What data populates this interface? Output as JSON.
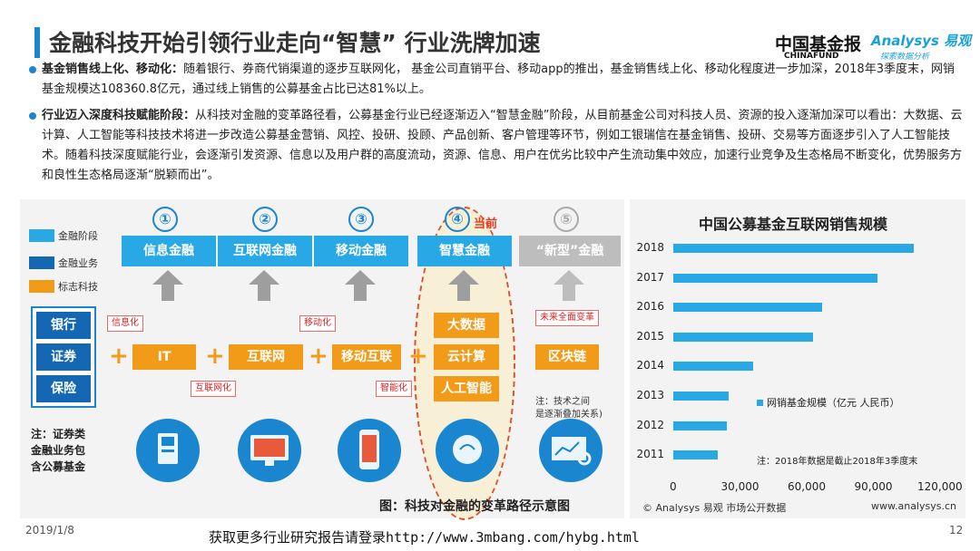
{
  "header": {
    "title": "金融科技开始引领行业走向“智慧” 行业洗牌加速",
    "logo_cn": "中国基金报",
    "logo_en": "CHINAFUND",
    "logo_analysys": "Analysys 易观",
    "logo_analysys_sub": "探索数据分析"
  },
  "bullets": [
    {
      "heading": "基金销售线上化、移动化：",
      "text": "随着银行、券商代销渠道的逐步互联网化， 基金公司直销平台、移动app的推出，基金销售线上化、移动化程度进一步加深，2018年3季度末，网销基金规模达108360.8亿元，通过线上销售的公募基金占比已达81%以上。"
    },
    {
      "heading": "行业迈入深度科技赋能阶段：",
      "text": "从科技对金融的变革路径看，公募基金行业已经逐渐迈入“智慧金融”阶段，从目前基金公司对科技人员、资源的投入逐渐加深可以看出：大数据、云计算、人工智能等科技技术将进一步改造公募基金营销、风控、投研、投顾、产品创新、客户管理等环节，例如工银瑞信在基金销售、投研、交易等方面逐步引入了人工智能技术。随着科技深度赋能行业，会逐渐引发资源、信息以及用户群的高度流动，资源、信息、用户在优劣比较中产生流动集中效应，加速行业竞争及生态格局不断变化，优势服务方和良性生态格局逐渐“脱颖而出”。"
    }
  ],
  "diagram": {
    "legend": [
      {
        "label": "金融阶段",
        "color": "#29a8e6"
      },
      {
        "label": "金融业务",
        "color": "#1467b3"
      },
      {
        "label": "标志科技",
        "color": "#f29b18"
      }
    ],
    "stages": [
      {
        "num": "①",
        "label": "信息金融"
      },
      {
        "num": "②",
        "label": "互联网金融"
      },
      {
        "num": "③",
        "label": "移动金融"
      },
      {
        "num": "④",
        "label": "智慧金融"
      },
      {
        "num": "⑤",
        "label": "“新型”金融"
      }
    ],
    "current_label": "当前",
    "businesses": [
      "银行",
      "证券",
      "保险"
    ],
    "techs": [
      "IT",
      "互联网",
      "移动互联",
      "区块链"
    ],
    "smart_techs": [
      "大数据",
      "云计算",
      "人工智能"
    ],
    "tags": [
      "信息化",
      "互联网化",
      "移动化",
      "智能化",
      "未来全面变革"
    ],
    "tech_note_line1": "注：技术之间",
    "tech_note_line2": "是逐渐叠加关系)",
    "left_note": "注：证券类金融业务包含公募基金",
    "caption": "图：科技对金融的变革路径示意图"
  },
  "chart_data": {
    "type": "bar",
    "orientation": "horizontal",
    "title": "中国公募基金互联网销售规模",
    "categories": [
      "2018",
      "2017",
      "2016",
      "2015",
      "2014",
      "2013",
      "2012",
      "2011"
    ],
    "series": [
      {
        "name": "网销基金规模（亿元 人民币）",
        "values": [
          108360.8,
          92000,
          67000,
          63000,
          36000,
          25000,
          24000,
          20000
        ]
      }
    ],
    "xticks": [
      "0",
      "30,000",
      "60,000",
      "90,000",
      "120,000"
    ],
    "xlim": [
      0,
      120000
    ],
    "note": "注：2018年数据是截止2018年3季度末",
    "source": "© Analysys 易观 市场公开数据",
    "website": "www.analysys.cn",
    "legend_position": "right"
  },
  "footer": {
    "date": "2019/1/8",
    "page": "12",
    "banner": "获取更多行业研究报告请登录http://www.3mbang.com/hybg.html"
  }
}
